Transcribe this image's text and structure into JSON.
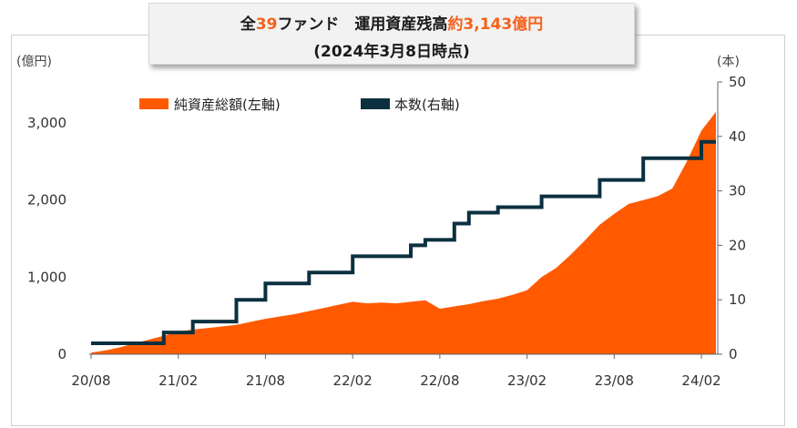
{
  "title": {
    "line1_prefix": "全",
    "line1_count": "39",
    "line1_mid": "ファンド　運用資産残高",
    "line1_amount": "約3,143億円",
    "line2": "(2024年3月8日時点)"
  },
  "colors": {
    "area": "#ff5a00",
    "line": "#0b3040",
    "highlight": "#f4621d"
  },
  "chart_data": {
    "type": "area",
    "title": "全39ファンド　運用資産残高約3,143億円",
    "subtitle": "(2024年3月8日時点)",
    "left_unit": "(億円)",
    "right_unit": "(本)",
    "legend": {
      "placement": "top-left",
      "area_label": "純資産総額(左軸)",
      "line_label": "本数(右軸)"
    },
    "x_ticks": [
      "20/08",
      "21/02",
      "21/08",
      "22/02",
      "22/08",
      "23/02",
      "23/08",
      "24/02"
    ],
    "x_range": [
      "2020-08",
      "2024-03"
    ],
    "y_left": {
      "range": [
        0,
        3000
      ],
      "ticks": [
        0,
        1000,
        2000,
        3000
      ],
      "tick_labels": [
        "0",
        "1,000",
        "2,000",
        "3,000"
      ]
    },
    "y_right": {
      "range": [
        0,
        50
      ],
      "ticks": [
        0,
        10,
        20,
        30,
        40,
        50
      ],
      "tick_labels": [
        "0",
        "10",
        "20",
        "30",
        "40",
        "50"
      ]
    },
    "series": [
      {
        "name": "純資産総額(左軸)",
        "axis": "left",
        "style": "area",
        "points": [
          [
            "2020-08",
            20
          ],
          [
            "2020-09",
            50
          ],
          [
            "2020-10",
            90
          ],
          [
            "2020-11",
            140
          ],
          [
            "2020-12",
            190
          ],
          [
            "2021-01",
            240
          ],
          [
            "2021-02",
            290
          ],
          [
            "2021-03",
            320
          ],
          [
            "2021-04",
            340
          ],
          [
            "2021-05",
            360
          ],
          [
            "2021-06",
            380
          ],
          [
            "2021-07",
            420
          ],
          [
            "2021-08",
            460
          ],
          [
            "2021-09",
            490
          ],
          [
            "2021-10",
            520
          ],
          [
            "2021-11",
            560
          ],
          [
            "2021-12",
            600
          ],
          [
            "2022-01",
            640
          ],
          [
            "2022-02",
            680
          ],
          [
            "2022-03",
            660
          ],
          [
            "2022-04",
            670
          ],
          [
            "2022-05",
            660
          ],
          [
            "2022-06",
            680
          ],
          [
            "2022-07",
            700
          ],
          [
            "2022-08",
            590
          ],
          [
            "2022-09",
            620
          ],
          [
            "2022-10",
            650
          ],
          [
            "2022-11",
            690
          ],
          [
            "2022-12",
            720
          ],
          [
            "2023-01",
            770
          ],
          [
            "2023-02",
            830
          ],
          [
            "2023-03",
            1000
          ],
          [
            "2023-04",
            1120
          ],
          [
            "2023-05",
            1290
          ],
          [
            "2023-06",
            1480
          ],
          [
            "2023-07",
            1680
          ],
          [
            "2023-08",
            1820
          ],
          [
            "2023-09",
            1950
          ],
          [
            "2023-10",
            2000
          ],
          [
            "2023-11",
            2050
          ],
          [
            "2023-12",
            2150
          ],
          [
            "2024-01",
            2500
          ],
          [
            "2024-02",
            2900
          ],
          [
            "2024-03",
            3143
          ]
        ]
      },
      {
        "name": "本数(右軸)",
        "axis": "right",
        "style": "step",
        "points": [
          [
            "2020-08",
            2
          ],
          [
            "2021-01",
            4
          ],
          [
            "2021-03",
            6
          ],
          [
            "2021-06",
            10
          ],
          [
            "2021-08",
            13
          ],
          [
            "2021-11",
            15
          ],
          [
            "2022-02",
            18
          ],
          [
            "2022-06",
            20
          ],
          [
            "2022-07",
            21
          ],
          [
            "2022-09",
            24
          ],
          [
            "2022-10",
            26
          ],
          [
            "2022-12",
            27
          ],
          [
            "2023-03",
            29
          ],
          [
            "2023-07",
            32
          ],
          [
            "2023-10",
            36
          ],
          [
            "2024-02",
            39
          ],
          [
            "2024-03",
            39
          ]
        ]
      }
    ]
  }
}
